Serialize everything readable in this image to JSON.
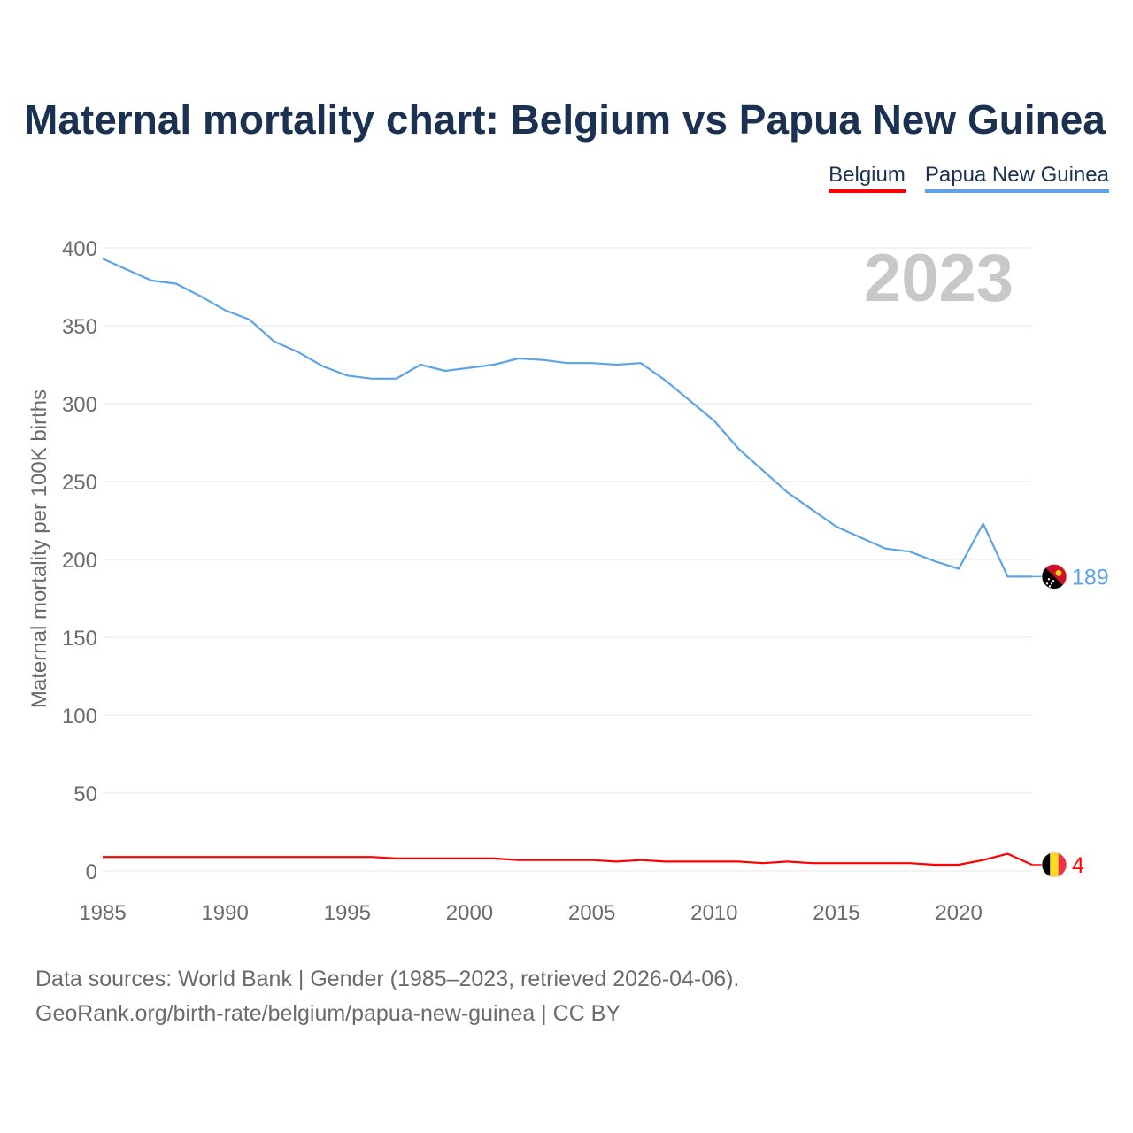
{
  "title": "Maternal mortality chart: Belgium vs Papua New Guinea",
  "legend": [
    {
      "label": "Belgium",
      "color": "#ff0000"
    },
    {
      "label": "Papua New Guinea",
      "color": "#5da4e6"
    }
  ],
  "source": {
    "line1": "Data sources: World Bank | Gender (1985–2023, retrieved 2026-04-06).",
    "line2": "GeoRank.org/birth-rate/belgium/papua-new-guinea | CC BY"
  },
  "chart_data": {
    "type": "line",
    "title": "Maternal mortality chart: Belgium vs Papua New Guinea",
    "ylabel": "Maternal mortality per 100K births",
    "xlabel": "",
    "year_label": "2023",
    "xlim": [
      1985,
      2023
    ],
    "ylim": [
      0,
      400
    ],
    "x_ticks": [
      1985,
      1990,
      1995,
      2000,
      2005,
      2010,
      2015,
      2020
    ],
    "y_ticks": [
      0,
      50,
      100,
      150,
      200,
      250,
      300,
      350,
      400
    ],
    "grid": true,
    "legend_position": "top-right",
    "x": [
      1985,
      1986,
      1987,
      1988,
      1989,
      1990,
      1991,
      1992,
      1993,
      1994,
      1995,
      1996,
      1997,
      1998,
      1999,
      2000,
      2001,
      2002,
      2003,
      2004,
      2005,
      2006,
      2007,
      2008,
      2009,
      2010,
      2011,
      2012,
      2013,
      2014,
      2015,
      2016,
      2017,
      2018,
      2019,
      2020,
      2021,
      2022,
      2023
    ],
    "series": [
      {
        "name": "Belgium",
        "color": "#ff0000",
        "end_label": "4",
        "values": [
          9,
          9,
          9,
          9,
          9,
          9,
          9,
          9,
          9,
          9,
          9,
          9,
          8,
          8,
          8,
          8,
          8,
          7,
          7,
          7,
          7,
          6,
          7,
          6,
          6,
          6,
          6,
          5,
          6,
          5,
          5,
          5,
          5,
          5,
          4,
          4,
          7,
          11,
          4
        ]
      },
      {
        "name": "Papua New Guinea",
        "color": "#5da4e6",
        "end_label": "189",
        "values": [
          393,
          386,
          379,
          377,
          369,
          360,
          354,
          340,
          333,
          324,
          318,
          316,
          316,
          325,
          321,
          323,
          325,
          329,
          328,
          326,
          326,
          325,
          326,
          315,
          302,
          289,
          271,
          257,
          243,
          232,
          221,
          214,
          207,
          205,
          199,
          194,
          223,
          189,
          189
        ]
      }
    ]
  }
}
